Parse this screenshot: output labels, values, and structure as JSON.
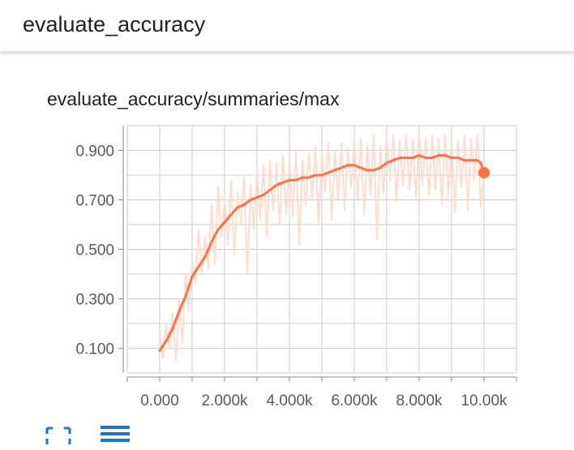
{
  "header": {
    "title": "evaluate_accuracy"
  },
  "card": {
    "title": "evaluate_accuracy/summaries/max",
    "fullscreen_icon": "fullscreen-icon",
    "data_toggle_icon": "menu-lines-icon"
  },
  "colors": {
    "smoothed_line": "#ff7043",
    "raw_line": "#ffdccf",
    "grid": "#cccccc",
    "tick_text": "#5a5a5a"
  },
  "chart_data": {
    "type": "line",
    "xlim": [
      -1000,
      11000
    ],
    "ylim": [
      0.0,
      1.0
    ],
    "y_ticks": [
      {
        "value": 0.1,
        "label": "0.100"
      },
      {
        "value": 0.3,
        "label": "0.300"
      },
      {
        "value": 0.5,
        "label": "0.500"
      },
      {
        "value": 0.7,
        "label": "0.700"
      },
      {
        "value": 0.9,
        "label": "0.900"
      }
    ],
    "x_ticks": [
      {
        "value": 0,
        "label": "0.000"
      },
      {
        "value": 2000,
        "label": "2.000k"
      },
      {
        "value": 4000,
        "label": "4.000k"
      },
      {
        "value": 6000,
        "label": "6.000k"
      },
      {
        "value": 8000,
        "label": "8.000k"
      },
      {
        "value": 10000,
        "label": "10.00k"
      }
    ],
    "grid": true,
    "series": [
      {
        "role": "smoothed",
        "x": [
          0,
          200,
          400,
          600,
          800,
          1000,
          1200,
          1400,
          1600,
          1800,
          2000,
          2200,
          2400,
          2600,
          2800,
          3000,
          3200,
          3400,
          3600,
          3800,
          4000,
          4200,
          4400,
          4600,
          4800,
          5000,
          5200,
          5400,
          5600,
          5800,
          6000,
          6200,
          6400,
          6600,
          6800,
          7000,
          7200,
          7400,
          7600,
          7800,
          8000,
          8200,
          8400,
          8600,
          8800,
          9000,
          9200,
          9400,
          9600,
          9800,
          9900,
          10000
        ],
        "y": [
          0.09,
          0.13,
          0.18,
          0.25,
          0.31,
          0.39,
          0.43,
          0.47,
          0.53,
          0.58,
          0.61,
          0.64,
          0.67,
          0.68,
          0.7,
          0.71,
          0.72,
          0.74,
          0.76,
          0.77,
          0.78,
          0.78,
          0.79,
          0.79,
          0.8,
          0.8,
          0.81,
          0.82,
          0.83,
          0.84,
          0.84,
          0.83,
          0.82,
          0.82,
          0.83,
          0.85,
          0.86,
          0.87,
          0.87,
          0.87,
          0.88,
          0.87,
          0.87,
          0.88,
          0.88,
          0.87,
          0.87,
          0.86,
          0.86,
          0.86,
          0.85,
          0.81
        ]
      },
      {
        "role": "raw",
        "x": [
          0,
          100,
          200,
          300,
          400,
          500,
          600,
          700,
          800,
          900,
          1000,
          1100,
          1200,
          1300,
          1400,
          1500,
          1600,
          1700,
          1800,
          1900,
          2000,
          2100,
          2200,
          2300,
          2400,
          2500,
          2600,
          2700,
          2800,
          2900,
          3000,
          3100,
          3200,
          3300,
          3400,
          3500,
          3600,
          3700,
          3800,
          3900,
          4000,
          4100,
          4200,
          4300,
          4400,
          4500,
          4600,
          4700,
          4800,
          4900,
          5000,
          5100,
          5200,
          5300,
          5400,
          5500,
          5600,
          5700,
          5800,
          5900,
          6000,
          6100,
          6200,
          6300,
          6400,
          6500,
          6600,
          6700,
          6800,
          6900,
          7000,
          7100,
          7200,
          7300,
          7400,
          7500,
          7600,
          7700,
          7800,
          7900,
          8000,
          8100,
          8200,
          8300,
          8400,
          8500,
          8600,
          8700,
          8800,
          8900,
          9000,
          9100,
          9200,
          9300,
          9400,
          9500,
          9600,
          9700,
          9800,
          9900,
          10000
        ],
        "y": [
          0.16,
          0.06,
          0.2,
          0.1,
          0.24,
          0.05,
          0.3,
          0.12,
          0.4,
          0.25,
          0.45,
          0.36,
          0.58,
          0.4,
          0.55,
          0.42,
          0.68,
          0.44,
          0.75,
          0.55,
          0.7,
          0.52,
          0.78,
          0.48,
          0.73,
          0.6,
          0.8,
          0.4,
          0.76,
          0.58,
          0.82,
          0.62,
          0.84,
          0.55,
          0.86,
          0.66,
          0.85,
          0.6,
          0.88,
          0.64,
          0.87,
          0.63,
          0.9,
          0.52,
          0.86,
          0.68,
          0.89,
          0.71,
          0.92,
          0.6,
          0.88,
          0.73,
          0.93,
          0.62,
          0.9,
          0.7,
          0.93,
          0.66,
          0.91,
          0.75,
          0.94,
          0.7,
          0.95,
          0.64,
          0.92,
          0.72,
          0.96,
          0.54,
          0.92,
          0.73,
          0.95,
          0.78,
          0.96,
          0.69,
          0.94,
          0.76,
          0.96,
          0.74,
          0.95,
          0.7,
          0.96,
          0.76,
          0.95,
          0.72,
          0.96,
          0.74,
          0.95,
          0.68,
          0.96,
          0.71,
          0.95,
          0.65,
          0.94,
          0.75,
          0.96,
          0.66,
          0.95,
          0.78,
          0.96,
          0.67,
          0.81
        ]
      }
    ],
    "end_marker": {
      "x": 10000,
      "y": 0.81
    }
  }
}
